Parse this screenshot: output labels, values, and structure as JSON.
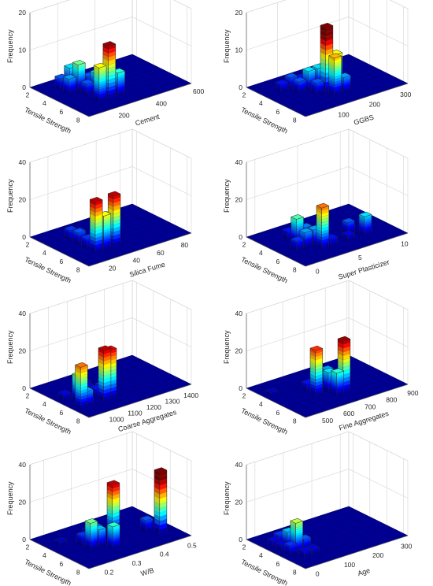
{
  "chart_data": [
    {
      "type": "bar3d",
      "xlabel": "Cement",
      "ylabel": "Tensile Strength",
      "zlabel": "Frequency",
      "xticks": [
        200,
        400,
        600
      ],
      "yticks": [
        2,
        4,
        6,
        8
      ],
      "zticks": [
        0,
        10,
        20
      ],
      "xlim": [
        50,
        600
      ],
      "ylim": [
        1.5,
        8.5
      ],
      "zlim": [
        0,
        20
      ],
      "bars": [
        {
          "x": 200,
          "y": 6.5,
          "z": 9
        },
        {
          "x": 250,
          "y": 6.5,
          "z": 14
        },
        {
          "x": 300,
          "y": 6.5,
          "z": 6
        },
        {
          "x": 200,
          "y": 5.0,
          "z": 3
        },
        {
          "x": 250,
          "y": 5.0,
          "z": 5
        },
        {
          "x": 300,
          "y": 5.0,
          "z": 2
        },
        {
          "x": 150,
          "y": 4.0,
          "z": 4
        },
        {
          "x": 200,
          "y": 4.0,
          "z": 7
        },
        {
          "x": 250,
          "y": 4.0,
          "z": 3
        },
        {
          "x": 150,
          "y": 3.0,
          "z": 3
        },
        {
          "x": 200,
          "y": 3.0,
          "z": 5
        },
        {
          "x": 250,
          "y": 3.0,
          "z": 2
        }
      ]
    },
    {
      "type": "bar3d",
      "xlabel": "GGBS",
      "ylabel": "Tensile Strength",
      "zlabel": "Frequency",
      "xticks": [
        100,
        200,
        300
      ],
      "yticks": [
        2,
        4,
        6,
        8
      ],
      "zticks": [
        0,
        10,
        20
      ],
      "xlim": [
        0,
        330
      ],
      "ylim": [
        1.5,
        8.5
      ],
      "zlim": [
        0,
        20
      ],
      "bars": [
        {
          "x": 150,
          "y": 6.5,
          "z": 10
        },
        {
          "x": 180,
          "y": 6.5,
          "z": 4
        },
        {
          "x": 120,
          "y": 5.5,
          "z": 3
        },
        {
          "x": 150,
          "y": 5.5,
          "z": 17
        },
        {
          "x": 180,
          "y": 5.5,
          "z": 9
        },
        {
          "x": 90,
          "y": 4.5,
          "z": 3
        },
        {
          "x": 120,
          "y": 4.5,
          "z": 5
        },
        {
          "x": 150,
          "y": 4.5,
          "z": 5
        },
        {
          "x": 180,
          "y": 4.5,
          "z": 4
        },
        {
          "x": 60,
          "y": 3.5,
          "z": 2
        },
        {
          "x": 90,
          "y": 3.5,
          "z": 3
        },
        {
          "x": 120,
          "y": 3.5,
          "z": 2
        }
      ]
    },
    {
      "type": "bar3d",
      "xlabel": "Silica Fume",
      "ylabel": "Tensile Strength",
      "zlabel": "Frequency",
      "xticks": [
        20,
        40,
        60,
        80
      ],
      "yticks": [
        2,
        4,
        6,
        8
      ],
      "zticks": [
        0,
        20,
        40
      ],
      "xlim": [
        5,
        90
      ],
      "ylim": [
        1.5,
        8.5
      ],
      "zlim": [
        0,
        40
      ],
      "bars": [
        {
          "x": 25,
          "y": 6.5,
          "z": 27
        },
        {
          "x": 32,
          "y": 6.5,
          "z": 18
        },
        {
          "x": 40,
          "y": 6.5,
          "z": 27
        },
        {
          "x": 25,
          "y": 5.5,
          "z": 5
        },
        {
          "x": 32,
          "y": 5.5,
          "z": 14
        },
        {
          "x": 40,
          "y": 5.5,
          "z": 14
        },
        {
          "x": 25,
          "y": 4.5,
          "z": 6
        },
        {
          "x": 40,
          "y": 4.5,
          "z": 6
        },
        {
          "x": 50,
          "y": 4.5,
          "z": 3
        },
        {
          "x": 25,
          "y": 3.5,
          "z": 5
        },
        {
          "x": 32,
          "y": 3.5,
          "z": 3
        }
      ]
    },
    {
      "type": "bar3d",
      "xlabel": "Super Plasticizer",
      "ylabel": "Tensile Strength",
      "zlabel": "Frequency",
      "xticks": [
        0,
        5,
        10
      ],
      "yticks": [
        2,
        4,
        6,
        8
      ],
      "zticks": [
        0,
        20,
        40
      ],
      "xlim": [
        -1,
        11
      ],
      "ylim": [
        1.5,
        8.5
      ],
      "zlim": [
        0,
        40
      ],
      "bars": [
        {
          "x": 3,
          "y": 6.5,
          "z": 22
        },
        {
          "x": 4,
          "y": 6.5,
          "z": 4
        },
        {
          "x": 6,
          "y": 6.5,
          "z": 3
        },
        {
          "x": 8,
          "y": 6.5,
          "z": 10
        },
        {
          "x": 1,
          "y": 5.5,
          "z": 5
        },
        {
          "x": 2,
          "y": 5.5,
          "z": 8
        },
        {
          "x": 3,
          "y": 5.5,
          "z": 8
        },
        {
          "x": 7,
          "y": 5.5,
          "z": 6
        },
        {
          "x": 2,
          "y": 4.5,
          "z": 13
        },
        {
          "x": 3,
          "y": 4.5,
          "z": 7
        },
        {
          "x": 2,
          "y": 3.5,
          "z": 4
        }
      ]
    },
    {
      "type": "bar3d",
      "xlabel": "Coarse Aggregates",
      "ylabel": "Tensile Strength",
      "zlabel": "Frequency",
      "xticks": [
        1000,
        1100,
        1200,
        1300,
        1400
      ],
      "yticks": [
        2,
        4,
        6,
        8
      ],
      "zticks": [
        0,
        20,
        40
      ],
      "xlim": [
        900,
        1450
      ],
      "ylim": [
        1.5,
        8.5
      ],
      "zlim": [
        0,
        40
      ],
      "bars": [
        {
          "x": 950,
          "y": 6.5,
          "z": 22
        },
        {
          "x": 980,
          "y": 6.5,
          "z": 8
        },
        {
          "x": 1075,
          "y": 6.5,
          "z": 27
        },
        {
          "x": 1105,
          "y": 6.5,
          "z": 26
        },
        {
          "x": 980,
          "y": 5.5,
          "z": 14
        },
        {
          "x": 1075,
          "y": 5.5,
          "z": 4
        },
        {
          "x": 1105,
          "y": 5.5,
          "z": 5
        },
        {
          "x": 950,
          "y": 4.5,
          "z": 3
        },
        {
          "x": 1075,
          "y": 4.5,
          "z": 3
        },
        {
          "x": 1105,
          "y": 3.5,
          "z": 2
        }
      ]
    },
    {
      "type": "bar3d",
      "xlabel": "Fine Aggregates",
      "ylabel": "Tensile Strength",
      "zlabel": "Frequency",
      "xticks": [
        500,
        600,
        700,
        800,
        900
      ],
      "yticks": [
        2,
        4,
        6,
        8
      ],
      "zticks": [
        0,
        20,
        40
      ],
      "xlim": [
        430,
        910
      ],
      "ylim": [
        1.5,
        8.5
      ],
      "zlim": [
        0,
        40
      ],
      "bars": [
        {
          "x": 660,
          "y": 6.5,
          "z": 12
        },
        {
          "x": 690,
          "y": 6.5,
          "z": 28
        },
        {
          "x": 600,
          "y": 5.5,
          "z": 24
        },
        {
          "x": 660,
          "y": 5.5,
          "z": 10
        },
        {
          "x": 690,
          "y": 5.5,
          "z": 5
        },
        {
          "x": 600,
          "y": 4.5,
          "z": 4
        },
        {
          "x": 690,
          "y": 4.5,
          "z": 8
        },
        {
          "x": 470,
          "y": 3.5,
          "z": 2
        },
        {
          "x": 720,
          "y": 3.5,
          "z": 4
        }
      ]
    },
    {
      "type": "bar3d",
      "xlabel": "W/B",
      "ylabel": "Tensile Strength",
      "zlabel": "Frequency",
      "xticks": [
        0.2,
        0.3,
        0.4,
        0.5
      ],
      "yticks": [
        2,
        4,
        6,
        8
      ],
      "zticks": [
        0,
        20,
        40
      ],
      "xlim": [
        0.15,
        0.52
      ],
      "ylim": [
        1.5,
        8.5
      ],
      "zlim": [
        0,
        40
      ],
      "bars": [
        {
          "x": 0.3,
          "y": 6.5,
          "z": 12
        },
        {
          "x": 0.47,
          "y": 6.5,
          "z": 33
        },
        {
          "x": 0.25,
          "y": 5.5,
          "z": 14
        },
        {
          "x": 0.28,
          "y": 5.5,
          "z": 9
        },
        {
          "x": 0.45,
          "y": 5.5,
          "z": 6
        },
        {
          "x": 0.25,
          "y": 4.5,
          "z": 5
        },
        {
          "x": 0.3,
          "y": 4.5,
          "z": 7
        },
        {
          "x": 0.36,
          "y": 4.5,
          "z": 27
        },
        {
          "x": 0.2,
          "y": 3.5,
          "z": 2
        },
        {
          "x": 0.3,
          "y": 3.5,
          "z": 3
        }
      ]
    },
    {
      "type": "bar3d",
      "xlabel": "Age",
      "ylabel": "Tensile Strength",
      "zlabel": "Frequency",
      "xticks": [
        0,
        100,
        200,
        300
      ],
      "yticks": [
        2,
        4,
        6,
        8
      ],
      "zticks": [
        0,
        20,
        40
      ],
      "xlim": [
        -30,
        330
      ],
      "ylim": [
        1.5,
        8.5
      ],
      "zlim": [
        0,
        40
      ],
      "bars": [
        {
          "x": 28,
          "y": 6.5,
          "z": 3
        },
        {
          "x": 56,
          "y": 6.5,
          "z": 3
        },
        {
          "x": 7,
          "y": 5.5,
          "z": 5
        },
        {
          "x": 28,
          "y": 5.5,
          "z": 16
        },
        {
          "x": 56,
          "y": 5.5,
          "z": 6
        },
        {
          "x": 7,
          "y": 4.5,
          "z": 3
        },
        {
          "x": 28,
          "y": 4.5,
          "z": 9
        },
        {
          "x": 56,
          "y": 4.5,
          "z": 5
        },
        {
          "x": 7,
          "y": 3.5,
          "z": 3
        },
        {
          "x": 28,
          "y": 3.5,
          "z": 5
        },
        {
          "x": 56,
          "y": 3.5,
          "z": 2
        }
      ]
    }
  ]
}
